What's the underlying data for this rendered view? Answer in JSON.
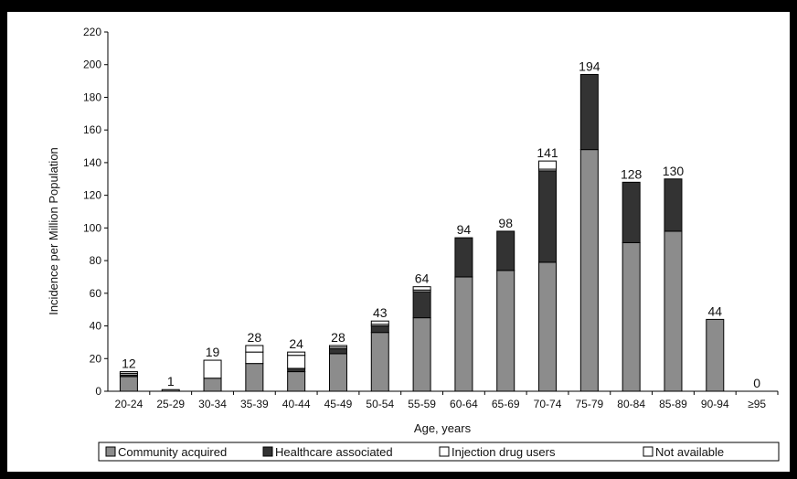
{
  "chart_data": {
    "type": "bar",
    "stacked": true,
    "xlabel": "Age, years",
    "ylabel": "Incidence per Million Population",
    "ylim": [
      0,
      220
    ],
    "yticks": [
      0,
      20,
      40,
      60,
      80,
      100,
      120,
      140,
      160,
      180,
      200,
      220
    ],
    "grid": false,
    "legend_position": "bottom",
    "categories": [
      "20-24",
      "25-29",
      "30-34",
      "35-39",
      "40-44",
      "45-49",
      "50-54",
      "55-59",
      "60-64",
      "65-69",
      "70-74",
      "75-79",
      "80-84",
      "85-89",
      "90-94",
      "≥95"
    ],
    "totals": [
      12,
      1,
      19,
      28,
      24,
      28,
      43,
      64,
      94,
      98,
      141,
      194,
      128,
      130,
      44,
      0
    ],
    "series": [
      {
        "name": "Community acquired",
        "color": "#8c8c8c",
        "values": [
          9,
          1,
          8,
          17,
          12,
          23,
          36,
          45,
          70,
          74,
          79,
          148,
          91,
          98,
          44,
          0
        ]
      },
      {
        "name": "Healthcare associated",
        "color": "#333333",
        "values": [
          1,
          0,
          0,
          0,
          2,
          3,
          4,
          16,
          24,
          24,
          56,
          46,
          37,
          32,
          0,
          0
        ]
      },
      {
        "name": "Injection drug users",
        "color": "#ffffff",
        "values": [
          1,
          0,
          11,
          7,
          8,
          1,
          1,
          1,
          0,
          0,
          1,
          0,
          0,
          0,
          0,
          0
        ]
      },
      {
        "name": "Not available",
        "color": "#ffffff",
        "values": [
          1,
          0,
          0,
          4,
          2,
          1,
          2,
          2,
          0,
          0,
          5,
          0,
          0,
          0,
          0,
          0
        ]
      }
    ]
  }
}
